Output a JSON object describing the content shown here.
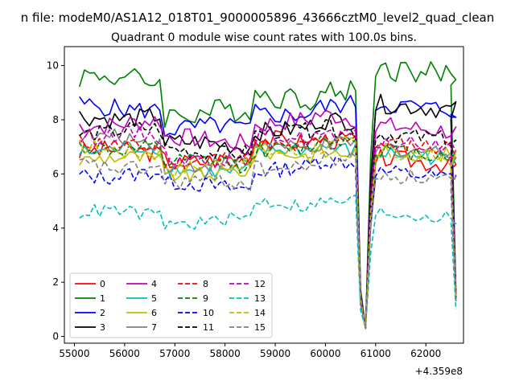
{
  "figure": {
    "suptitle": "n file: modeM0/AS1A12_018T01_9000005896_43666cztM0_level2_quad_clean",
    "offset_label": "+4.359e8"
  },
  "chart_data": {
    "type": "line",
    "title": "Quadrant 0 module wise count rates with 100.0s bins.",
    "xlabel": "",
    "ylabel": "",
    "x_offset_label": "+4.359e8",
    "xlim": [
      54800,
      62750
    ],
    "ylim": [
      -0.25,
      10.7
    ],
    "xticks": [
      55000,
      56000,
      57000,
      58000,
      59000,
      60000,
      61000,
      62000
    ],
    "yticks": [
      0,
      2,
      4,
      6,
      8,
      10
    ],
    "grid": false,
    "legend": {
      "placement": "lower-left",
      "columns": 4
    },
    "series": [
      {
        "name": "0",
        "color": "#ff0000",
        "dash": "solid",
        "base": 7.1,
        "amp": 0.35,
        "p1": 6.75,
        "p2": 6.6,
        "end": 1.5
      },
      {
        "name": "1",
        "color": "#008000",
        "dash": "solid",
        "base": 8.8,
        "amp": 0.45,
        "p1": 9.6,
        "p2": 9.9,
        "end": 1.6
      },
      {
        "name": "2",
        "color": "#0000ff",
        "dash": "solid",
        "base": 8.2,
        "amp": 0.35,
        "p1": 8.5,
        "p2": 8.6,
        "end": 1.6
      },
      {
        "name": "3",
        "color": "#000000",
        "dash": "solid",
        "base": 7.6,
        "amp": 0.35,
        "p1": 8.2,
        "p2": 8.6,
        "end": 1.4
      },
      {
        "name": "4",
        "color": "#bf00bf",
        "dash": "solid",
        "base": 7.8,
        "amp": 0.35,
        "p1": 7.9,
        "p2": 7.8,
        "end": 1.5
      },
      {
        "name": "5",
        "color": "#00bfbf",
        "dash": "solid",
        "base": 6.7,
        "amp": 0.3,
        "p1": 6.9,
        "p2": 6.8,
        "end": 1.4
      },
      {
        "name": "6",
        "color": "#bfbf00",
        "dash": "solid",
        "base": 6.6,
        "amp": 0.3,
        "p1": 6.5,
        "p2": 6.9,
        "end": 1.4
      },
      {
        "name": "7",
        "color": "#808080",
        "dash": "solid",
        "base": 6.9,
        "amp": 0.3,
        "p1": 7.3,
        "p2": 7.0,
        "end": 1.3
      },
      {
        "name": "8",
        "color": "#ff0000",
        "dash": "dashed",
        "base": 7.0,
        "amp": 0.3,
        "p1": 7.1,
        "p2": 7.2,
        "end": 1.5
      },
      {
        "name": "9",
        "color": "#008000",
        "dash": "dashed",
        "base": 6.9,
        "amp": 0.3,
        "p1": 7.0,
        "p2": 6.9,
        "end": 1.5
      },
      {
        "name": "10",
        "color": "#0000ff",
        "dash": "dashed",
        "base": 6.1,
        "amp": 0.3,
        "p1": 6.0,
        "p2": 6.1,
        "end": 1.4
      },
      {
        "name": "11",
        "color": "#000000",
        "dash": "dashed",
        "base": 7.4,
        "amp": 0.3,
        "p1": 7.6,
        "p2": 7.5,
        "end": 1.4
      },
      {
        "name": "12",
        "color": "#bf00bf",
        "dash": "dashed",
        "base": 7.2,
        "amp": 0.3,
        "p1": 7.4,
        "p2": 7.2,
        "end": 1.5
      },
      {
        "name": "13",
        "color": "#00bfbf",
        "dash": "dashed",
        "base": 4.8,
        "amp": 0.25,
        "p1": 4.5,
        "p2": 4.6,
        "end": 1.0
      },
      {
        "name": "14",
        "color": "#bfbf00",
        "dash": "dashed",
        "base": 6.8,
        "amp": 0.3,
        "p1": 6.9,
        "p2": 6.8,
        "end": 1.4
      },
      {
        "name": "15",
        "color": "#808080",
        "dash": "dashed",
        "base": 6.2,
        "amp": 0.3,
        "p1": 6.3,
        "p2": 6.0,
        "end": 1.3
      }
    ],
    "x_range": [
      55100,
      62600
    ],
    "dip_points": [
      {
        "x": 60700,
        "y": 1.5
      },
      {
        "x": 60800,
        "y": 0.3
      },
      {
        "x": 60900,
        "y": 5.0
      }
    ]
  }
}
